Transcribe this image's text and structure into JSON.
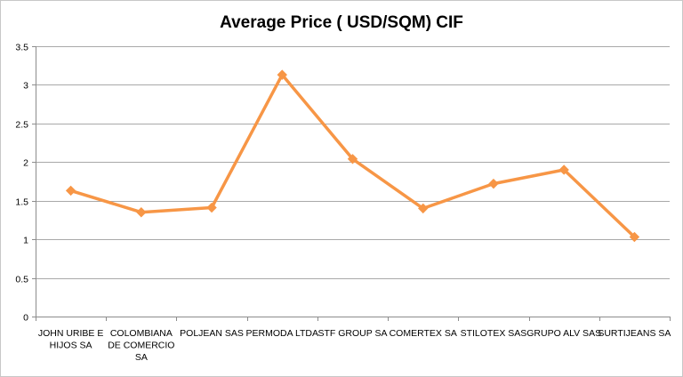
{
  "chart_data": {
    "type": "line",
    "title": "Average Price ( USD/SQM) CIF",
    "xlabel": "",
    "ylabel": "",
    "categories": [
      [
        "JOHN URIBE E",
        "HIJOS SA"
      ],
      [
        "COLOMBIANA",
        "DE COMERCIO",
        "SA"
      ],
      [
        "POLJEAN SAS"
      ],
      [
        "PERMODA LTDA"
      ],
      [
        "STF GROUP SA"
      ],
      [
        "COMERTEX SA"
      ],
      [
        "STILOTEX SAS"
      ],
      [
        "GRUPO ALV SAS"
      ],
      [
        "SURTIJEANS SA"
      ]
    ],
    "series": [
      {
        "values": [
          1.63,
          1.35,
          1.41,
          3.13,
          2.04,
          1.4,
          1.72,
          1.9,
          1.03
        ],
        "color": "#F79646",
        "marker": "diamond"
      }
    ],
    "ylim": [
      0,
      3.5
    ],
    "yticks": [
      "0",
      "0.5",
      "1",
      "1.5",
      "2",
      "2.5",
      "3",
      "3.5"
    ],
    "grid": true,
    "legend": "none"
  }
}
